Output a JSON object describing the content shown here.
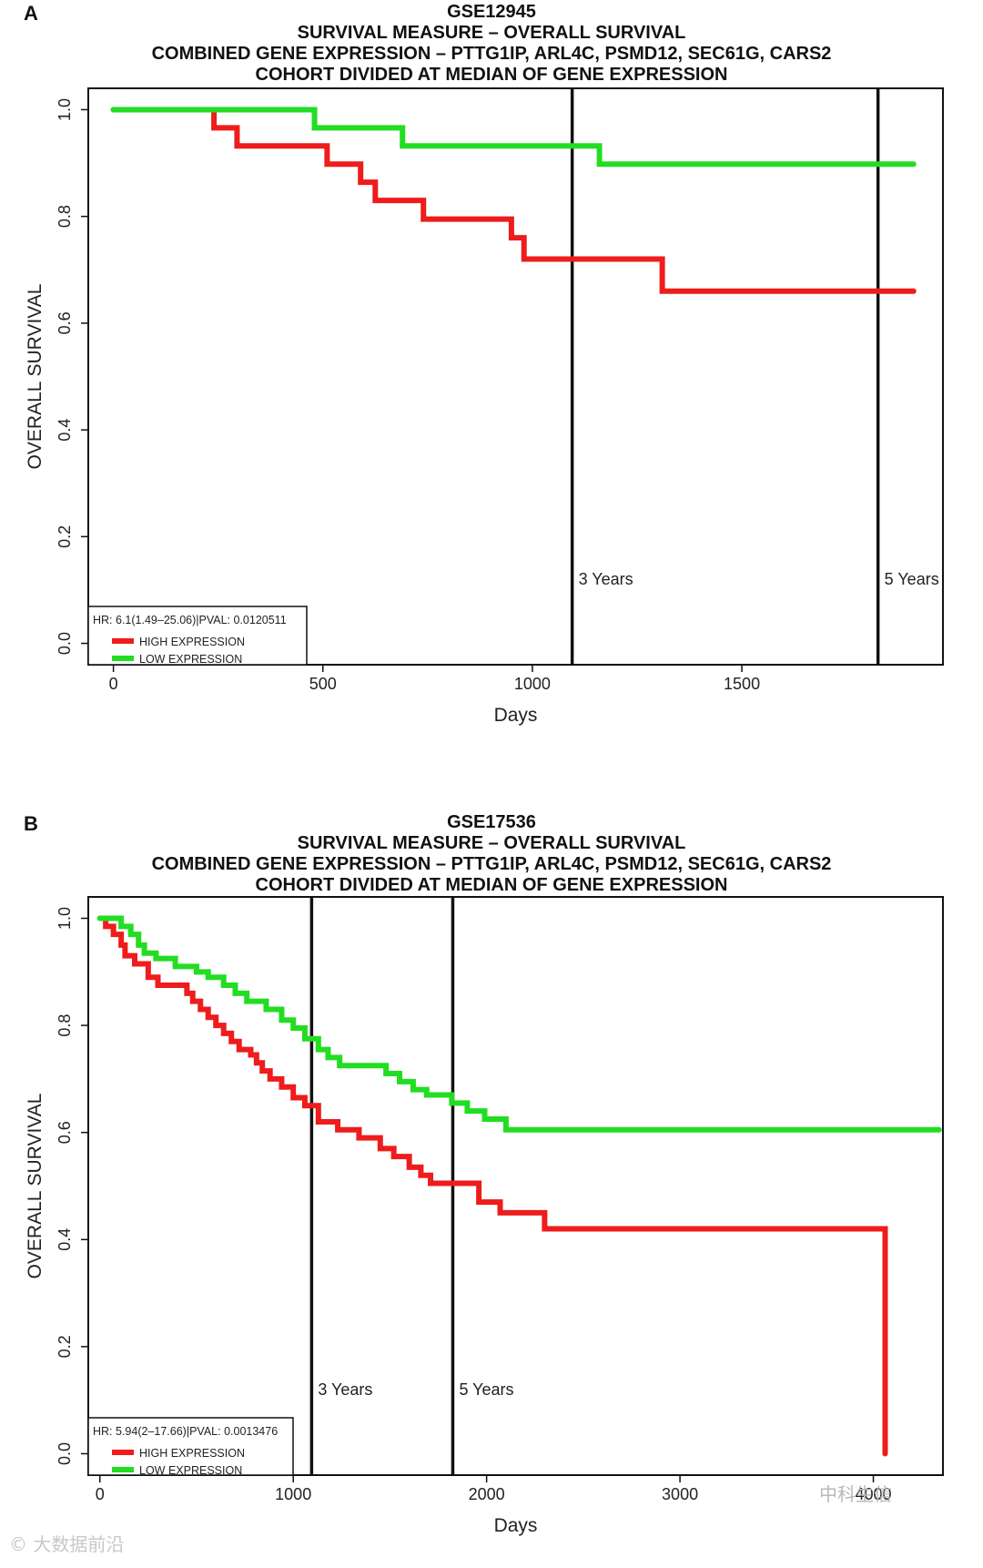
{
  "chart_data": [
    {
      "type": "line",
      "panel_label": "A",
      "title_lines": [
        "GSE12945",
        "SURVIVAL MEASURE –  OVERALL SURVIVAL",
        "COMBINED GENE EXPRESSION –  PTTG1IP, ARL4C, PSMD12, SEC61G, CARS2",
        "COHORT DIVIDED AT MEDIAN OF GENE EXPRESSION"
      ],
      "xlabel": "Days",
      "ylabel": "OVERALL SURVIVAL",
      "xlim": [
        -60,
        1980
      ],
      "ylim": [
        -0.04,
        1.04
      ],
      "x_ticks": [
        0,
        500,
        1000,
        1500
      ],
      "x_tick_labels": [
        "0",
        "500",
        "1000",
        "1500"
      ],
      "y_ticks": [
        0.0,
        0.2,
        0.4,
        0.6,
        0.8,
        1.0
      ],
      "y_tick_labels": [
        "0.0",
        "0.2",
        "0.4",
        "0.6",
        "0.8",
        "1.0"
      ],
      "vlines": [
        {
          "x": 1095,
          "label": "3 Years"
        },
        {
          "x": 1825,
          "label": "5 Years"
        }
      ],
      "legend": {
        "position": "bottom-left",
        "stat": "HR: 6.1(1.49–25.06)|PVAL: 0.0120511",
        "entries": [
          {
            "label": "HIGH EXPRESSION",
            "color": "#ee1c1c"
          },
          {
            "label": "LOW EXPRESSION",
            "color": "#22dd22"
          }
        ]
      },
      "series": [
        {
          "name": "HIGH EXPRESSION",
          "color": "#ee1c1c",
          "steps": [
            [
              0,
              1.0
            ],
            [
              240,
              0.966
            ],
            [
              295,
              0.932
            ],
            [
              510,
              0.898
            ],
            [
              590,
              0.864
            ],
            [
              625,
              0.83
            ],
            [
              740,
              0.795
            ],
            [
              950,
              0.76
            ],
            [
              980,
              0.72
            ],
            [
              1310,
              0.66
            ],
            [
              1910,
              0.66
            ]
          ]
        },
        {
          "name": "LOW EXPRESSION",
          "color": "#22dd22",
          "steps": [
            [
              0,
              1.0
            ],
            [
              480,
              0.966
            ],
            [
              690,
              0.932
            ],
            [
              1160,
              0.898
            ],
            [
              1910,
              0.898
            ]
          ]
        }
      ]
    },
    {
      "type": "line",
      "panel_label": "B",
      "title_lines": [
        "GSE17536",
        "SURVIVAL MEASURE –  OVERALL SURVIVAL",
        "COMBINED GENE EXPRESSION –  PTTG1IP, ARL4C, PSMD12, SEC61G, CARS2",
        "COHORT DIVIDED AT MEDIAN OF GENE EXPRESSION"
      ],
      "xlabel": "Days",
      "ylabel": "OVERALL SURVIVAL",
      "xlim": [
        -60,
        4360
      ],
      "ylim": [
        -0.04,
        1.04
      ],
      "x_ticks": [
        0,
        1000,
        2000,
        3000,
        4000
      ],
      "x_tick_labels": [
        "0",
        "1000",
        "2000",
        "3000",
        "4000"
      ],
      "y_ticks": [
        0.0,
        0.2,
        0.4,
        0.6,
        0.8,
        1.0
      ],
      "y_tick_labels": [
        "0.0",
        "0.2",
        "0.4",
        "0.6",
        "0.8",
        "1.0"
      ],
      "vlines": [
        {
          "x": 1095,
          "label": "3 Years"
        },
        {
          "x": 1825,
          "label": "5 Years"
        }
      ],
      "legend": {
        "position": "bottom-left",
        "stat": "HR: 5.94(2–17.66)|PVAL: 0.0013476",
        "entries": [
          {
            "label": "HIGH EXPRESSION",
            "color": "#ee1c1c"
          },
          {
            "label": "LOW EXPRESSION",
            "color": "#22dd22"
          }
        ]
      },
      "series": [
        {
          "name": "HIGH EXPRESSION",
          "color": "#ee1c1c",
          "steps": [
            [
              0,
              1.0
            ],
            [
              30,
              0.985
            ],
            [
              70,
              0.97
            ],
            [
              110,
              0.95
            ],
            [
              130,
              0.93
            ],
            [
              180,
              0.915
            ],
            [
              250,
              0.89
            ],
            [
              300,
              0.875
            ],
            [
              450,
              0.86
            ],
            [
              480,
              0.845
            ],
            [
              520,
              0.83
            ],
            [
              560,
              0.815
            ],
            [
              600,
              0.8
            ],
            [
              640,
              0.785
            ],
            [
              680,
              0.77
            ],
            [
              720,
              0.755
            ],
            [
              780,
              0.745
            ],
            [
              810,
              0.73
            ],
            [
              840,
              0.715
            ],
            [
              880,
              0.7
            ],
            [
              940,
              0.685
            ],
            [
              1000,
              0.665
            ],
            [
              1060,
              0.65
            ],
            [
              1130,
              0.62
            ],
            [
              1230,
              0.605
            ],
            [
              1340,
              0.59
            ],
            [
              1450,
              0.57
            ],
            [
              1520,
              0.555
            ],
            [
              1600,
              0.535
            ],
            [
              1660,
              0.52
            ],
            [
              1710,
              0.505
            ],
            [
              1960,
              0.47
            ],
            [
              2070,
              0.45
            ],
            [
              2300,
              0.42
            ],
            [
              4060,
              0.42
            ],
            [
              4061,
              0.0
            ]
          ]
        },
        {
          "name": "LOW EXPRESSION",
          "color": "#22dd22",
          "steps": [
            [
              0,
              1.0
            ],
            [
              110,
              0.985
            ],
            [
              160,
              0.97
            ],
            [
              200,
              0.95
            ],
            [
              230,
              0.935
            ],
            [
              290,
              0.925
            ],
            [
              390,
              0.91
            ],
            [
              500,
              0.9
            ],
            [
              560,
              0.89
            ],
            [
              640,
              0.875
            ],
            [
              700,
              0.86
            ],
            [
              760,
              0.845
            ],
            [
              860,
              0.83
            ],
            [
              940,
              0.81
            ],
            [
              1000,
              0.795
            ],
            [
              1060,
              0.775
            ],
            [
              1130,
              0.755
            ],
            [
              1180,
              0.74
            ],
            [
              1240,
              0.725
            ],
            [
              1480,
              0.71
            ],
            [
              1550,
              0.695
            ],
            [
              1620,
              0.68
            ],
            [
              1690,
              0.67
            ],
            [
              1820,
              0.655
            ],
            [
              1900,
              0.64
            ],
            [
              1990,
              0.625
            ],
            [
              2100,
              0.605
            ],
            [
              4340,
              0.605
            ]
          ]
        }
      ]
    }
  ],
  "watermarks": {
    "left": "© 大数据前沿",
    "right": "中科生信"
  }
}
